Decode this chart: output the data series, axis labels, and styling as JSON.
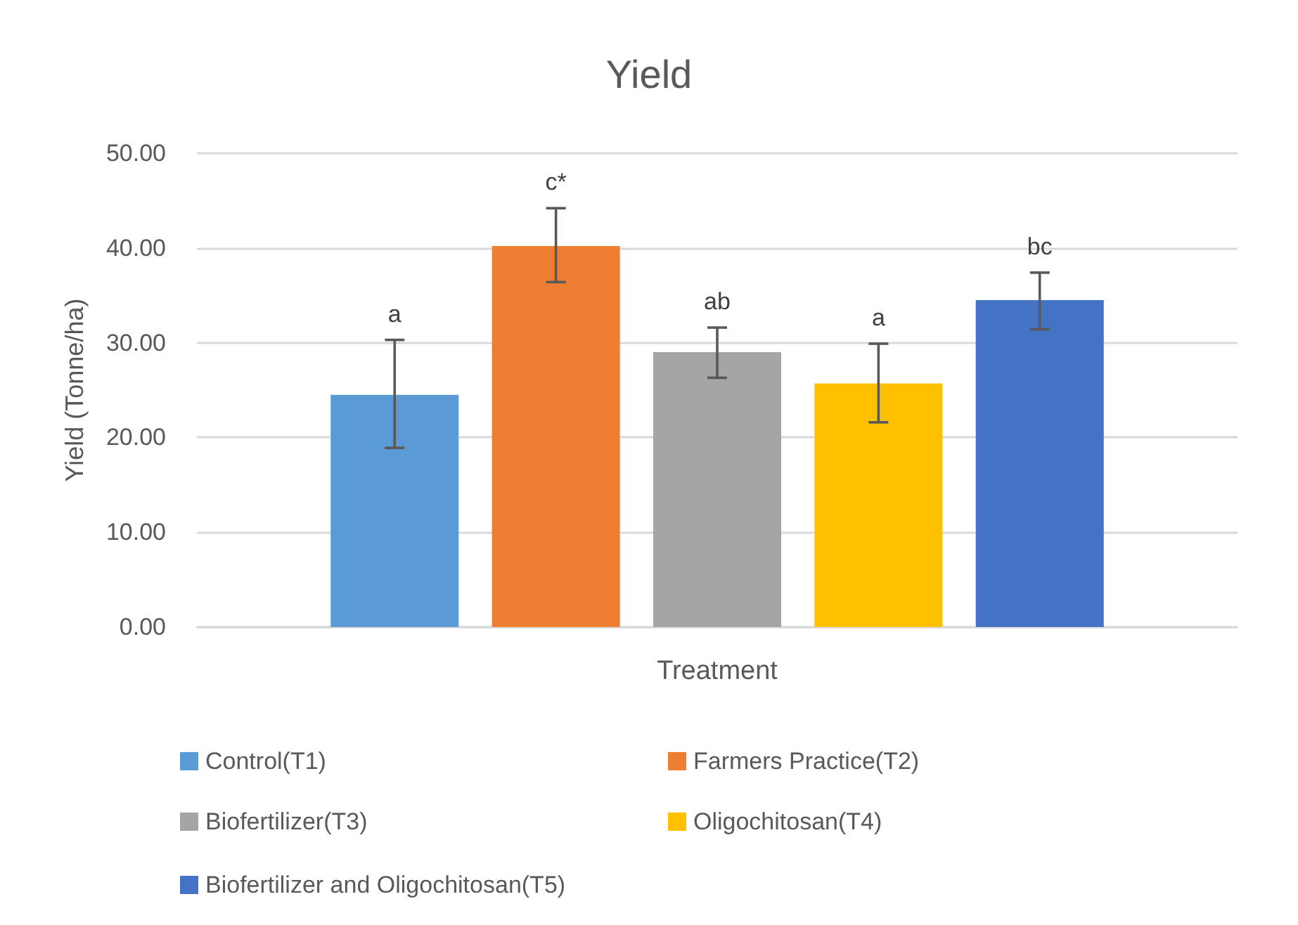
{
  "chart_data": {
    "type": "bar",
    "title": "Yield",
    "xlabel": "Treatment",
    "ylabel": "Yield (Tonne/ha)",
    "categories": [
      null
    ],
    "series": [
      {
        "name": "Control(T1)",
        "color": "#5b9bd5",
        "values": [
          24.5
        ],
        "errors": [
          [
            18.9,
            30.3
          ]
        ]
      },
      {
        "name": "Farmers Practice(T2)",
        "color": "#ed7d31",
        "values": [
          40.2
        ],
        "errors": [
          [
            36.4,
            44.2
          ]
        ]
      },
      {
        "name": "Biofertilizer(T3)",
        "color": "#a5a5a5",
        "values": [
          29.0
        ],
        "errors": [
          [
            26.3,
            31.6
          ]
        ]
      },
      {
        "name": "Oligochitosan(T4)",
        "color": "#ffc000",
        "values": [
          25.7
        ],
        "errors": [
          [
            21.6,
            29.9
          ]
        ]
      },
      {
        "name": "Biofertilizer and Oligochitosan(T5)",
        "color": "#4472c4",
        "values": [
          34.5
        ],
        "errors": [
          [
            31.4,
            37.4
          ]
        ]
      }
    ],
    "annotations": [
      {
        "text": "a",
        "y": 30.3
      },
      {
        "text": "c*",
        "y": 44.2
      },
      {
        "text": "ab",
        "y": 31.6
      },
      {
        "text": "a",
        "y": 29.9
      },
      {
        "text": "bc",
        "y": 37.4
      }
    ],
    "ylim": [
      0,
      50
    ],
    "yticks": [
      {
        "value": 0,
        "label": "0.00"
      },
      {
        "value": 10,
        "label": "10.00"
      },
      {
        "value": 20,
        "label": "20.00"
      },
      {
        "value": 30,
        "label": "30.00"
      },
      {
        "value": 40,
        "label": "40.00"
      },
      {
        "value": 50,
        "label": "50.00"
      }
    ],
    "grid": "y",
    "legend": "bottom"
  }
}
